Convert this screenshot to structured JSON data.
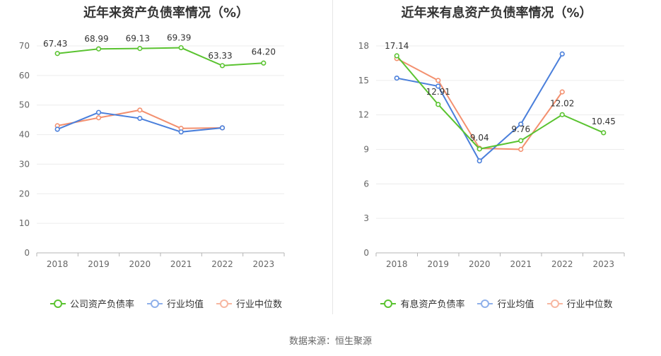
{
  "charts": [
    {
      "title": "近年来资产负债率情况（%）",
      "legend": [
        {
          "label": "公司资产负债率",
          "color": "#5ac330"
        },
        {
          "label": "行业均值",
          "color": "#4a7fdb"
        },
        {
          "label": "行业中位数",
          "color": "#f3906f"
        }
      ]
    },
    {
      "title": "近年来有息资产负债率情况（%）",
      "legend": [
        {
          "label": "有息资产负债率",
          "color": "#5ac330"
        },
        {
          "label": "行业均值",
          "color": "#4a7fdb"
        },
        {
          "label": "行业中位数",
          "color": "#f3906f"
        }
      ]
    }
  ],
  "source": "数据来源：恒生聚源",
  "chart_data": [
    {
      "type": "line",
      "title": "近年来资产负债率情况（%）",
      "categories": [
        "2018",
        "2019",
        "2020",
        "2021",
        "2022",
        "2023"
      ],
      "ylim": [
        0,
        70
      ],
      "yticks": [
        0,
        10,
        20,
        30,
        40,
        50,
        60,
        70
      ],
      "series": [
        {
          "name": "公司资产负债率",
          "color": "#5ac330",
          "values": [
            67.43,
            68.99,
            69.13,
            69.39,
            63.33,
            64.2
          ],
          "labels": [
            "67.43",
            "68.99",
            "69.13",
            "69.39",
            "63.33",
            "64.20"
          ]
        },
        {
          "name": "行业均值",
          "color": "#4a7fdb",
          "values": [
            41.8,
            47.5,
            45.5,
            40.9,
            42.3,
            null
          ]
        },
        {
          "name": "行业中位数",
          "color": "#f3906f",
          "values": [
            43.0,
            45.7,
            48.3,
            42.1,
            42.3,
            null
          ]
        }
      ]
    },
    {
      "type": "line",
      "title": "近年来有息资产负债率情况（%）",
      "categories": [
        "2018",
        "2019",
        "2020",
        "2021",
        "2022",
        "2023"
      ],
      "ylim": [
        0,
        18
      ],
      "yticks": [
        0,
        3,
        6,
        9,
        12,
        15,
        18
      ],
      "series": [
        {
          "name": "有息资产负债率",
          "color": "#5ac330",
          "values": [
            17.14,
            12.91,
            9.04,
            9.76,
            12.02,
            10.45
          ],
          "labels": [
            "17.14",
            "12.91",
            "9.04",
            "9.76",
            "12.02",
            "10.45"
          ]
        },
        {
          "name": "行业均值",
          "color": "#4a7fdb",
          "values": [
            15.2,
            14.5,
            8.0,
            11.2,
            17.3,
            null
          ]
        },
        {
          "name": "行业中位数",
          "color": "#f3906f",
          "values": [
            16.9,
            15.0,
            9.1,
            9.0,
            14.0,
            null
          ]
        }
      ]
    }
  ]
}
